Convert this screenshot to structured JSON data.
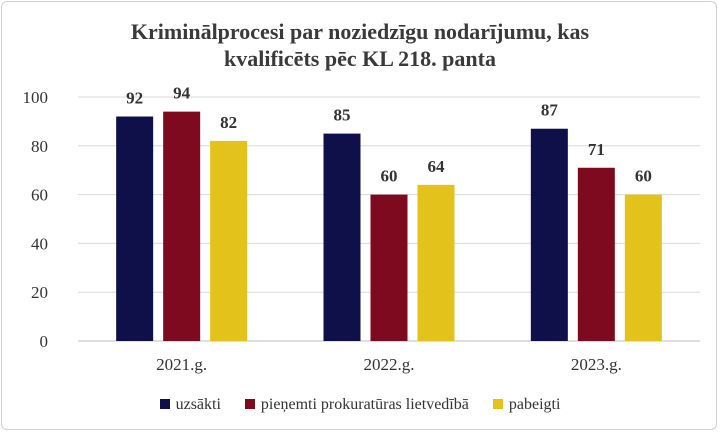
{
  "chart_data": {
    "type": "bar",
    "title": "Kriminālprocesi par noziedzīgu nodarījumu, kas kvalificēts pēc KL 218. panta",
    "title_lines": [
      "Kriminālprocesi par noziedzīgu nodarījumu, kas",
      "kvalificēts pēc KL 218. panta"
    ],
    "categories": [
      "2021.g.",
      "2022.g.",
      "2023.g."
    ],
    "series": [
      {
        "name": "uzsākti",
        "color": "#0f0f4a",
        "values": [
          92,
          85,
          87
        ]
      },
      {
        "name": "pieņemti prokuratūras lietvedībā",
        "color": "#7d0a1e",
        "values": [
          94,
          60,
          71
        ]
      },
      {
        "name": "pabeigti",
        "color": "#e3c21b",
        "values": [
          82,
          64,
          60
        ]
      }
    ],
    "ylim": [
      0,
      100
    ],
    "yticks": [
      0,
      20,
      40,
      60,
      80,
      100
    ],
    "grid": true,
    "data_labels": true,
    "legend_position": "bottom"
  }
}
